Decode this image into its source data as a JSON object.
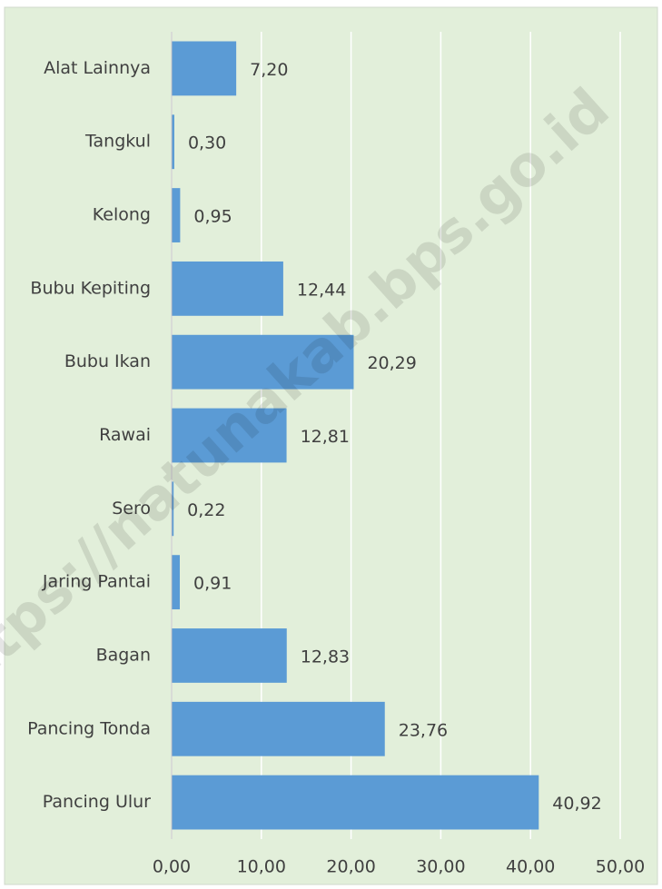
{
  "chart_data": {
    "type": "bar",
    "orientation": "horizontal",
    "categories": [
      "Alat Lainnya",
      "Tangkul",
      "Kelong",
      "Bubu Kepiting",
      "Bubu Ikan",
      "Rawai",
      "Sero",
      "Jaring Pantai",
      "Bagan",
      "Pancing Tonda",
      "Pancing Ulur"
    ],
    "values": [
      7.2,
      0.3,
      0.95,
      12.44,
      20.29,
      12.81,
      0.22,
      0.91,
      12.83,
      23.76,
      40.92
    ],
    "value_labels": [
      "7,20",
      "0,30",
      "0,95",
      "12,44",
      "20,29",
      "12,81",
      "0,22",
      "0,91",
      "12,83",
      "23,76",
      "40,92"
    ],
    "color": "#5b9bd5",
    "xlim": [
      0,
      50
    ],
    "xticks": [
      {
        "value": 0,
        "label": "0,00"
      },
      {
        "value": 10,
        "label": "10,00"
      },
      {
        "value": 20,
        "label": "20,00"
      },
      {
        "value": 30,
        "label": "30,00"
      },
      {
        "value": 40,
        "label": "40,00"
      },
      {
        "value": 50,
        "label": "50,00"
      }
    ],
    "grid": true,
    "watermark": "https://natunakab.bps.go.id"
  }
}
